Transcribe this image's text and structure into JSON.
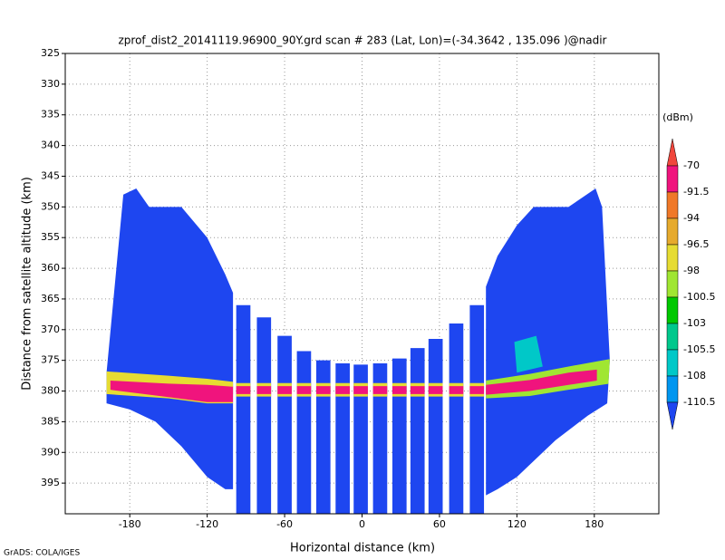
{
  "chart_data": {
    "type": "field",
    "title": "zprof_dist2_20141119.96900_90Y.grd  scan # 283  (Lat, Lon)=(-34.3642 , 135.096 )@nadir",
    "xlabel": "Horizontal distance (km)",
    "ylabel": "Distance from satellite altitude (km)",
    "credit": "GrADS: COLA/IGES",
    "xlim": [
      -230,
      230
    ],
    "ylim": [
      325,
      400
    ],
    "y_inverted": true,
    "grid": true,
    "xticks": [
      -180,
      -120,
      -60,
      0,
      60,
      120,
      180
    ],
    "yticks": [
      325,
      330,
      335,
      340,
      345,
      350,
      355,
      360,
      365,
      370,
      375,
      380,
      385,
      390,
      395
    ],
    "colorbar": {
      "label": "(dBm)",
      "levels": [
        -70,
        -91.5,
        -94,
        -96.5,
        -98,
        -100.5,
        -103,
        -105.5,
        -108,
        -110.5
      ],
      "colors": [
        "#f0463c",
        "#f0147d",
        "#f07828",
        "#e6aa2d",
        "#e6dc32",
        "#a0e632",
        "#00c800",
        "#00c88c",
        "#00c8c8",
        "#0096f0",
        "#1e46f0"
      ]
    },
    "swath": [
      {
        "color": "#1e46f0",
        "x": [
          -198,
          -185,
          -175,
          -165,
          -140,
          -120,
          -106,
          -100,
          -100,
          -106,
          -120,
          -140,
          -160,
          -180,
          -198
        ],
        "y": [
          377,
          348,
          347,
          350,
          350,
          355,
          361,
          364,
          396,
          396,
          394,
          389,
          385,
          383,
          382
        ]
      },
      {
        "color": "#1e46f0",
        "x": [
          -97.5,
          -86.5,
          -86.5,
          -97.5
        ],
        "y": [
          366,
          366,
          400,
          400
        ]
      },
      {
        "color": "#1e46f0",
        "x": [
          -81.5,
          -70.5,
          -70.5,
          -81.5
        ],
        "y": [
          368,
          368,
          400,
          400
        ]
      },
      {
        "color": "#1e46f0",
        "x": [
          -65.5,
          -54.5,
          -54.5,
          -65.5
        ],
        "y": [
          371,
          371,
          400,
          400
        ]
      },
      {
        "color": "#1e46f0",
        "x": [
          -50.5,
          -39.5,
          -39.5,
          -50.5
        ],
        "y": [
          373.5,
          373.5,
          400,
          400
        ]
      },
      {
        "color": "#1e46f0",
        "x": [
          -35.5,
          -24.5,
          -24.5,
          -35.5
        ],
        "y": [
          375,
          375,
          400,
          400
        ]
      },
      {
        "color": "#1e46f0",
        "x": [
          -20.5,
          -9.5,
          -9.5,
          -20.5
        ],
        "y": [
          375.5,
          375.5,
          400,
          400
        ]
      },
      {
        "color": "#1e46f0",
        "x": [
          -6.5,
          4.5,
          4.5,
          -6.5
        ],
        "y": [
          375.7,
          375.7,
          400,
          400
        ]
      },
      {
        "color": "#1e46f0",
        "x": [
          8.5,
          19.5,
          19.5,
          8.5
        ],
        "y": [
          375.5,
          375.5,
          400,
          400
        ]
      },
      {
        "color": "#1e46f0",
        "x": [
          23.5,
          34.5,
          34.5,
          23.5
        ],
        "y": [
          374.7,
          374.7,
          400,
          400
        ]
      },
      {
        "color": "#1e46f0",
        "x": [
          37.5,
          48.5,
          48.5,
          37.5
        ],
        "y": [
          373,
          373,
          400,
          400
        ]
      },
      {
        "color": "#1e46f0",
        "x": [
          51.5,
          62.5,
          62.5,
          51.5
        ],
        "y": [
          371.5,
          371.5,
          400,
          400
        ]
      },
      {
        "color": "#1e46f0",
        "x": [
          67.5,
          78.5,
          78.5,
          67.5
        ],
        "y": [
          369,
          369,
          400,
          400
        ]
      },
      {
        "color": "#1e46f0",
        "x": [
          83.5,
          94.5,
          94.5,
          83.5
        ],
        "y": [
          366,
          366,
          400,
          400
        ]
      },
      {
        "color": "#1e46f0",
        "x": [
          96,
          105,
          120,
          133,
          160,
          181,
          186,
          192,
          190,
          175,
          150,
          120,
          105,
          96
        ],
        "y": [
          363,
          358,
          353,
          350,
          350,
          347,
          350,
          375,
          382,
          384,
          388,
          394,
          396,
          397
        ]
      }
    ],
    "echo": [
      {
        "color": "#00c8c8",
        "x": [
          118,
          135,
          140,
          120
        ],
        "y": [
          372,
          371,
          376,
          377
        ]
      },
      {
        "color": "#e6dc32",
        "x": [
          -198,
          -150,
          -120,
          -100,
          -100,
          -120,
          -150,
          -198
        ],
        "y": [
          376.8,
          377.5,
          378,
          378.5,
          382,
          382,
          381.2,
          380.5
        ]
      },
      {
        "color": "#f0147d",
        "x": [
          -195,
          -150,
          -120,
          -100,
          -100,
          -120,
          -150,
          -195
        ],
        "y": [
          378.3,
          378.8,
          379,
          379.3,
          381.8,
          381.8,
          381,
          379.8
        ]
      },
      {
        "color": "#e6dc32",
        "x": [
          -100,
          100,
          100,
          -100
        ],
        "y": [
          378.7,
          378.7,
          380.9,
          380.9
        ]
      },
      {
        "color": "#f0147d",
        "x": [
          -100,
          100,
          100,
          -100
        ],
        "y": [
          379.2,
          379.2,
          380.5,
          380.5
        ]
      },
      {
        "color": "#a0e632",
        "x": [
          96,
          130,
          160,
          192,
          192,
          160,
          130,
          96
        ],
        "y": [
          378.3,
          377.2,
          376,
          374.8,
          378.8,
          379.8,
          380.8,
          381.2
        ]
      },
      {
        "color": "#f0147d",
        "x": [
          96,
          130,
          160,
          182,
          182,
          160,
          130,
          96
        ],
        "y": [
          379,
          378.2,
          377,
          376.5,
          378.3,
          379,
          380,
          380.6
        ]
      }
    ]
  }
}
